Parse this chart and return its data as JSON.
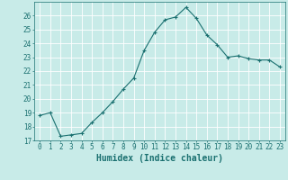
{
  "x": [
    0,
    1,
    2,
    3,
    4,
    5,
    6,
    7,
    8,
    9,
    10,
    11,
    12,
    13,
    14,
    15,
    16,
    17,
    18,
    19,
    20,
    21,
    22,
    23
  ],
  "y": [
    18.8,
    19.0,
    17.3,
    17.4,
    17.5,
    18.3,
    19.0,
    19.8,
    20.7,
    21.5,
    23.5,
    24.8,
    25.7,
    25.9,
    26.6,
    25.8,
    24.6,
    23.9,
    23.0,
    23.1,
    22.9,
    22.8,
    22.8,
    22.3
  ],
  "line_color": "#1a7070",
  "marker": "+",
  "marker_size": 3,
  "background_color": "#c8ebe8",
  "grid_color": "#ffffff",
  "xlabel": "Humidex (Indice chaleur)",
  "ylim": [
    17,
    27
  ],
  "xlim": [
    -0.5,
    23.5
  ],
  "yticks": [
    17,
    18,
    19,
    20,
    21,
    22,
    23,
    24,
    25,
    26
  ],
  "xticks": [
    0,
    1,
    2,
    3,
    4,
    5,
    6,
    7,
    8,
    9,
    10,
    11,
    12,
    13,
    14,
    15,
    16,
    17,
    18,
    19,
    20,
    21,
    22,
    23
  ],
  "xlabel_fontsize": 7,
  "tick_fontsize": 5.5,
  "tick_color": "#1a7070",
  "axis_color": "#1a7070",
  "linewidth": 0.8,
  "markeredgewidth": 0.8
}
